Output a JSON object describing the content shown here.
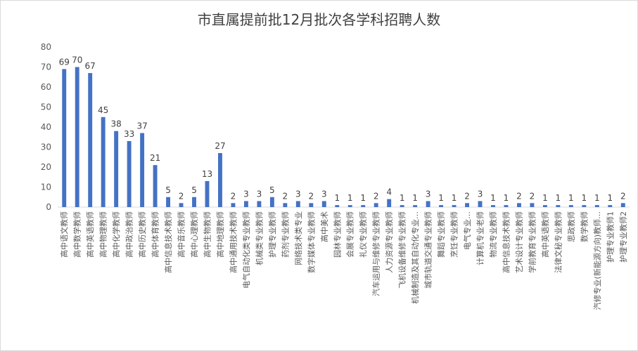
{
  "chart_data": {
    "type": "bar",
    "title": "市直属提前批12月批次各学科招聘人数",
    "xlabel": "",
    "ylabel": "",
    "ylim": [
      0,
      80
    ],
    "yticks": [
      0,
      10,
      20,
      30,
      40,
      50,
      60,
      70,
      80
    ],
    "grid": false,
    "bar_color": "#4472C4",
    "categories": [
      "高中语文教师",
      "高中数学教师",
      "高中英语教师",
      "高中物理教师",
      "高中化学教师",
      "高中政治教师",
      "高中历史教师",
      "高中体育教师",
      "高中信息技术教师",
      "高中音乐教师",
      "高中心理教师",
      "高中生物教师",
      "高中地理教师",
      "高中通用技术教师",
      "电气自动化类专业教师",
      "机械类专业教师",
      "护理专业教师",
      "药剂专业教师",
      "网络技术类专业",
      "数字媒体专业教师",
      "高中美术",
      "园林专业教师",
      "会展专业教师",
      "礼仪专业教师",
      "汽车运用与维修专业教师",
      "人力资源专业教师",
      "飞机设备维修专业教师",
      "机械制造及其自动化专业…",
      "城市轨道交通专业教师",
      "舞蹈专业教师",
      "烹饪专业教师",
      "电气专业…",
      "计算机专业老师",
      "物流专业教师",
      "高中信息技术教师",
      "艺术设计专业教师",
      "学前教育专业教师",
      "高中英语教师",
      "法律文秘专业教师",
      "思政教师",
      "数学教师",
      "汽修专业(新能源方向)教师…",
      "护理专业教师1",
      "护理专业教师2"
    ],
    "values": [
      69,
      70,
      67,
      45,
      38,
      33,
      37,
      21,
      5,
      2,
      5,
      13,
      27,
      2,
      3,
      3,
      5,
      2,
      3,
      2,
      3,
      1,
      1,
      1,
      2,
      4,
      1,
      1,
      3,
      1,
      1,
      2,
      3,
      1,
      1,
      2,
      2,
      1,
      1,
      1,
      1,
      1,
      1,
      2
    ]
  }
}
